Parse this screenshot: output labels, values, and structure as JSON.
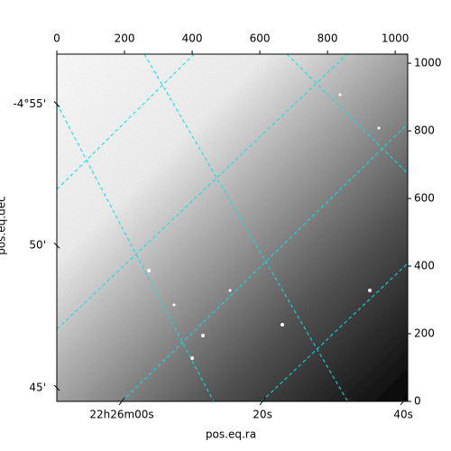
{
  "chart_data": {
    "type": "image",
    "xlabel": "pos.eq.ra",
    "ylabel": "pos.eq.dec",
    "xlim": [
      0,
      1037
    ],
    "ylim": [
      0,
      1027
    ],
    "xticks": [
      0,
      200,
      400,
      600,
      800,
      1000
    ],
    "yticks": [
      0,
      200,
      400,
      600,
      800,
      1000
    ],
    "ra_ticks": [
      {
        "value": 192,
        "label": "22h26m00s"
      },
      {
        "value": 608,
        "label": "20s"
      },
      {
        "value": 1024,
        "label": "40s"
      }
    ],
    "dec_ticks": [
      {
        "value": 879,
        "label": "-4°55'"
      },
      {
        "value": 461,
        "label": "50'"
      },
      {
        "value": 40,
        "label": "45'"
      }
    ],
    "grid": true,
    "grid_color": "#00e5e5"
  }
}
